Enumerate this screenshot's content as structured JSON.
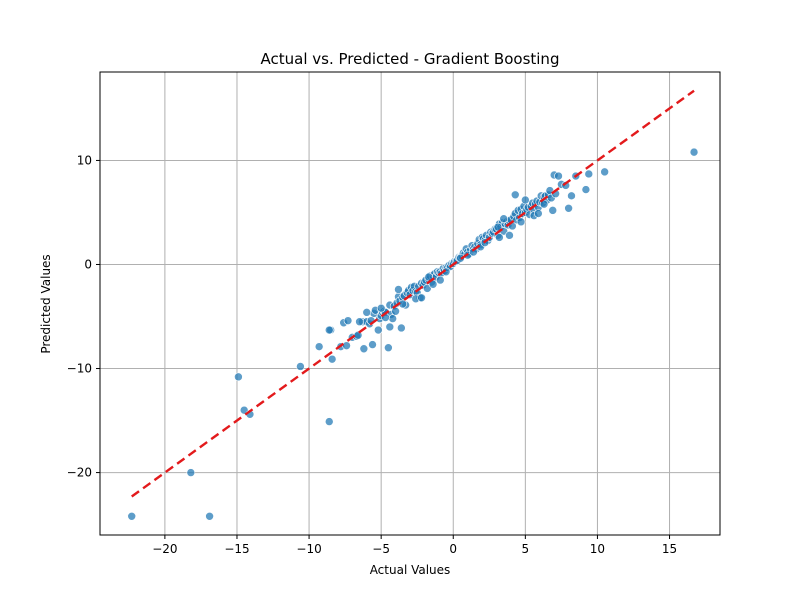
{
  "chart_data": {
    "type": "scatter",
    "title": "Actual vs. Predicted - Gradient Boosting",
    "xlabel": "Actual Values",
    "ylabel": "Predicted Values",
    "xlim": [
      -24.5,
      18.5
    ],
    "ylim": [
      -26.0,
      18.5
    ],
    "xticks": [
      -20,
      -15,
      -10,
      -5,
      0,
      5,
      10,
      15
    ],
    "yticks": [
      -20,
      -10,
      0,
      10
    ],
    "xtick_labels": [
      "−20",
      "−15",
      "−10",
      "−5",
      "0",
      "5",
      "10",
      "15"
    ],
    "ytick_labels": [
      "−20",
      "−10",
      "0",
      "10"
    ],
    "grid": true,
    "point_color": "#1f77b4",
    "point_edge_color": "#ffffff",
    "line_color": "#e31a1c",
    "reference_line": {
      "x": [
        -22.3,
        16.7
      ],
      "y": [
        -22.3,
        16.7
      ],
      "style": "dashed"
    },
    "series": [
      {
        "x": [
          -22.3,
          -18.2,
          -16.9,
          -14.9,
          -14.5,
          -14.1,
          -10.6,
          -9.3,
          -8.6,
          -8.5,
          -8.4,
          -7.8,
          -7.6,
          -7.4,
          -7.3,
          -7.0,
          -6.7,
          -6.6,
          -6.3,
          -6.2,
          -6.0,
          -5.8,
          -5.6,
          -5.5,
          -5.4,
          -5.2,
          -5.1,
          -5.0,
          -4.9,
          -4.8,
          -4.7,
          -4.5,
          -4.4,
          -4.3,
          -4.2,
          -4.1,
          -4.0,
          -3.9,
          -3.8,
          -3.7,
          -3.6,
          -3.5,
          -3.4,
          -3.3,
          -3.2,
          -3.1,
          -3.0,
          -2.9,
          -2.8,
          -2.7,
          -2.6,
          -2.5,
          -2.4,
          -2.3,
          -2.2,
          -2.1,
          -2.0,
          -1.9,
          -1.8,
          -1.7,
          -1.6,
          -1.5,
          -1.4,
          -1.3,
          -1.2,
          -1.1,
          -1.0,
          -0.9,
          -0.8,
          -0.7,
          -0.6,
          -0.5,
          -0.4,
          -0.3,
          -0.2,
          -0.1,
          0.0,
          0.1,
          0.2,
          0.3,
          0.4,
          0.5,
          0.6,
          0.7,
          0.8,
          0.9,
          1.0,
          1.1,
          1.2,
          1.3,
          1.4,
          1.5,
          1.6,
          1.7,
          1.8,
          1.9,
          2.0,
          2.1,
          2.2,
          2.3,
          2.4,
          2.5,
          2.6,
          2.7,
          2.8,
          2.9,
          3.0,
          3.1,
          3.2,
          3.3,
          3.4,
          3.5,
          3.6,
          3.7,
          3.8,
          3.9,
          4.0,
          4.1,
          4.2,
          4.3,
          4.4,
          4.5,
          4.6,
          4.7,
          4.8,
          4.9,
          5.0,
          5.1,
          5.2,
          5.3,
          5.4,
          5.5,
          5.6,
          5.7,
          5.8,
          5.9,
          6.0,
          6.1,
          6.2,
          6.3,
          6.4,
          6.5,
          6.6,
          6.7,
          6.8,
          7.0,
          7.1,
          7.3,
          7.5,
          7.8,
          8.0,
          8.2,
          8.5,
          9.2,
          9.4,
          10.5,
          16.7,
          -5.0,
          -3.8,
          -4.4,
          -2.6,
          -1.4,
          -0.9,
          1.0,
          1.9,
          3.2,
          3.9,
          4.7,
          5.6,
          6.3,
          -6.5,
          -5.7,
          -4.7,
          -3.5,
          -2.2,
          -1.7,
          -0.5,
          0.5,
          1.4,
          2.2,
          3.1,
          3.5,
          4.3,
          5.0,
          5.9,
          6.9,
          -8.6,
          -6.0
        ],
        "y": [
          -24.2,
          -20.0,
          -24.2,
          -10.8,
          -14.0,
          -14.4,
          -9.8,
          -7.9,
          -15.1,
          -6.3,
          -9.1,
          -7.9,
          -5.6,
          -7.8,
          -5.4,
          -7.0,
          -6.9,
          -6.8,
          -5.5,
          -8.1,
          -5.5,
          -5.7,
          -7.7,
          -4.7,
          -4.4,
          -6.3,
          -5.2,
          -4.9,
          -4.6,
          -4.5,
          -4.6,
          -8.0,
          -3.9,
          -4.8,
          -5.2,
          -4.0,
          -4.5,
          -3.7,
          -3.1,
          -3.5,
          -6.1,
          -3.2,
          -3.0,
          -3.9,
          -2.7,
          -2.5,
          -2.9,
          -2.2,
          -2.5,
          -2.1,
          -2.6,
          -2.7,
          -2.1,
          -3.2,
          -1.8,
          -2.0,
          -1.7,
          -1.5,
          -2.3,
          -1.4,
          -1.1,
          -1.7,
          -1.1,
          -0.9,
          -1.2,
          -0.7,
          -0.8,
          -0.7,
          -0.8,
          -0.4,
          -0.6,
          -0.3,
          -0.3,
          -0.1,
          -0.2,
          0.1,
          0.1,
          0.3,
          0.3,
          0.4,
          0.7,
          0.7,
          0.8,
          1.1,
          1.0,
          1.5,
          1.2,
          1.0,
          1.4,
          1.8,
          1.5,
          1.7,
          1.5,
          2.0,
          2.4,
          1.9,
          2.6,
          2.5,
          2.3,
          2.8,
          2.3,
          2.6,
          3.1,
          3.0,
          3.1,
          3.4,
          3.4,
          2.8,
          3.9,
          3.6,
          4.0,
          3.2,
          3.9,
          4.1,
          3.8,
          4.2,
          4.3,
          3.7,
          4.6,
          4.9,
          4.3,
          5.2,
          4.5,
          5.3,
          4.9,
          5.6,
          5.0,
          5.3,
          5.5,
          4.8,
          5.6,
          5.9,
          5.2,
          5.8,
          6.1,
          5.5,
          6.0,
          6.6,
          5.9,
          6.5,
          6.6,
          6.2,
          6.7,
          7.1,
          6.4,
          8.6,
          6.8,
          8.5,
          7.7,
          7.6,
          5.4,
          6.6,
          8.5,
          7.2,
          8.7,
          8.9,
          10.8,
          -4.2,
          -2.4,
          -6.0,
          -3.3,
          -1.9,
          -1.5,
          0.9,
          1.7,
          2.6,
          2.8,
          4.1,
          4.7,
          5.8,
          -5.5,
          -5.4,
          -5.1,
          -3.8,
          -3.2,
          -1.2,
          -0.7,
          0.6,
          1.2,
          2.1,
          3.6,
          4.4,
          6.7,
          6.2,
          4.9,
          5.2,
          -6.3,
          -4.6
        ]
      }
    ]
  }
}
